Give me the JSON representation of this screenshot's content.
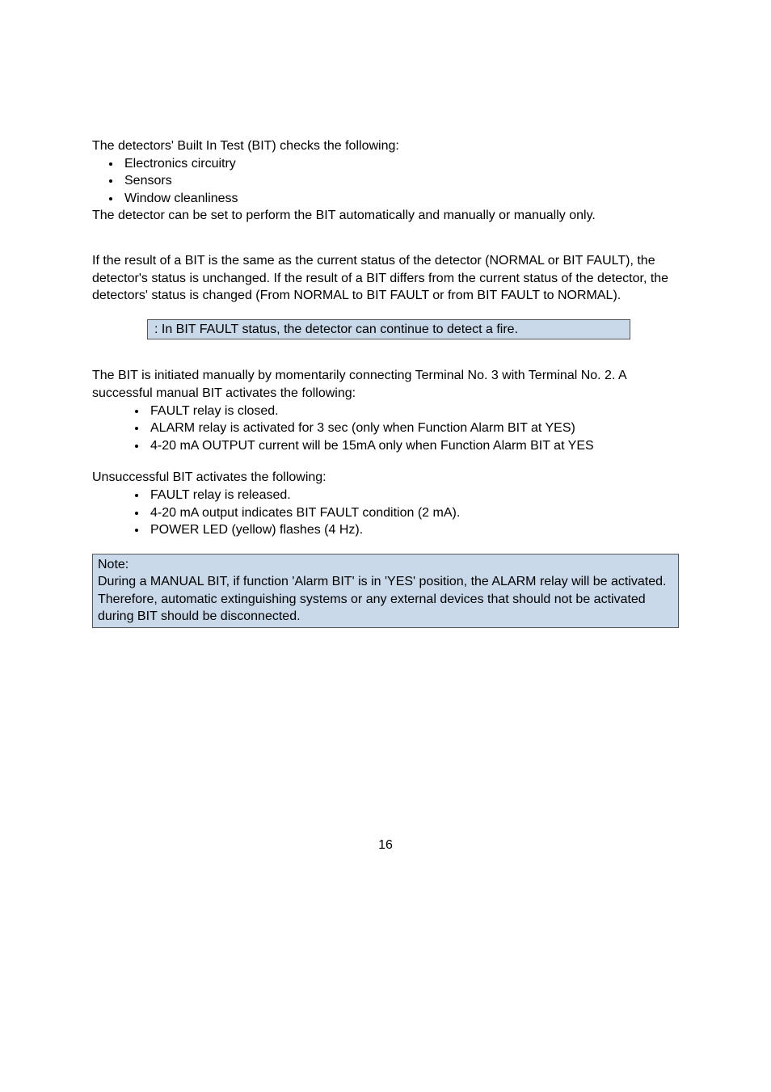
{
  "intro": {
    "line1": "The detectors' Built In Test (BIT) checks the following:",
    "bullets": [
      "Electronics circuitry",
      "Sensors",
      "Window cleanliness"
    ],
    "line2": "The detector can be set to perform the BIT automatically and manually or manually only."
  },
  "resultPara": "If the result of a BIT is the same as the current status of the detector (NORMAL or BIT FAULT), the detector's status is unchanged. If the result of a BIT differs from the current status of the detector, the detectors' status is changed (From NORMAL to BIT FAULT or from BIT FAULT to NORMAL).",
  "noteBox1": ": In BIT FAULT status, the detector can continue to detect a fire.",
  "manualBit": {
    "intro": "The BIT is initiated manually by momentarily connecting Terminal No. 3 with Terminal No. 2. A successful manual BIT activates the following:",
    "bullets": [
      "FAULT relay is closed.",
      "ALARM relay is activated for 3 sec (only when Function Alarm BIT at YES)",
      "4-20 mA OUTPUT current will be 15mA only when Function Alarm BIT at YES"
    ]
  },
  "unsuccessful": {
    "intro": "Unsuccessful BIT activates the following:",
    "bullets": [
      "FAULT relay is released.",
      "4-20 mA output indicates BIT FAULT condition (2 mA).",
      "POWER LED (yellow) flashes (4 Hz)."
    ]
  },
  "noteBox2": {
    "label": "Note:",
    "text": "During a MANUAL BIT, if function 'Alarm BIT' is in 'YES' position, the ALARM relay will be activated. Therefore, automatic extinguishing systems or any external devices that should not be activated during BIT should be disconnected."
  },
  "pageNumber": "16",
  "colors": {
    "noteBg": "#c9d9ea",
    "noteBorder": "#555555",
    "text": "#000000",
    "pageBg": "#ffffff"
  },
  "fontSize": 16
}
